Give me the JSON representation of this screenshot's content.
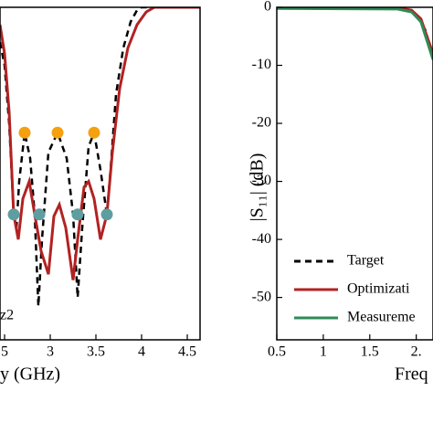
{
  "chart_data": [
    {
      "type": "line",
      "x_label": "y (GHz)",
      "annotation": "z2",
      "xlim": [
        2.45,
        4.64
      ],
      "ylim": [
        -57.3,
        0
      ],
      "xticks": [
        {
          "value": 2.5,
          "label": "5"
        },
        3.0,
        3.5,
        4.0,
        4.5
      ],
      "series": [
        {
          "color": "#000000",
          "dash": true,
          "x": [
            2.45,
            2.5,
            2.55,
            2.6,
            2.63,
            2.66,
            2.72,
            2.78,
            2.83,
            2.87,
            2.91,
            2.98,
            3.08,
            3.18,
            3.25,
            3.3,
            3.35,
            3.42,
            3.48,
            3.55,
            3.62,
            3.66,
            3.72,
            3.8,
            3.88,
            3.95,
            4.0,
            4.64
          ],
          "values": [
            -6,
            -10,
            -20,
            -35.7,
            -38,
            -30,
            -21.6,
            -26,
            -35.7,
            -51.5,
            -40,
            -25,
            -21.6,
            -26,
            -35.7,
            -50,
            -38,
            -24,
            -21.6,
            -28,
            -35.7,
            -28,
            -15,
            -7,
            -2.5,
            -0.5,
            0,
            0
          ]
        },
        {
          "color": "#b22222",
          "dash": false,
          "x": [
            2.45,
            2.5,
            2.55,
            2.6,
            2.65,
            2.7,
            2.77,
            2.83,
            2.9,
            2.98,
            3.04,
            3.1,
            3.17,
            3.25,
            3.3,
            3.37,
            3.42,
            3.48,
            3.55,
            3.62,
            3.68,
            3.76,
            3.85,
            3.95,
            4.05,
            4.14,
            4.64
          ],
          "values": [
            -3,
            -8,
            -18,
            -35.7,
            -40,
            -33,
            -30,
            -35.7,
            -42,
            -46,
            -36,
            -34,
            -38,
            -47,
            -40,
            -31,
            -30,
            -33,
            -40,
            -35.7,
            -25,
            -14,
            -7,
            -3,
            -0.8,
            0,
            0
          ]
        }
      ],
      "points": [
        {
          "color": "#f5a00f",
          "x": [
            2.72,
            3.08,
            3.48
          ],
          "values": [
            -21.6,
            -21.6,
            -21.6
          ]
        },
        {
          "color": "#5f9ea0",
          "x": [
            2.6,
            2.88,
            3.3,
            3.62
          ],
          "values": [
            -35.7,
            -35.7,
            -35.7,
            -35.7
          ]
        }
      ]
    },
    {
      "type": "line",
      "x_label": "Freq",
      "y_label": "|S₁₁| (dB)",
      "xlim": [
        0.5,
        2.18
      ],
      "ylim": [
        -57.3,
        0
      ],
      "xticks": [
        0.5,
        1.0,
        1.5,
        {
          "value": 2.0,
          "label": "2."
        }
      ],
      "yticks": [
        0,
        -10,
        -20,
        -30,
        -40,
        -50
      ],
      "series": [
        {
          "name": "Target",
          "color": "#000000",
          "dash": true,
          "x": [
            0.5,
            1.8,
            1.9,
            2.0,
            2.1,
            2.18
          ],
          "values": [
            0,
            0,
            -0.3,
            -1.2,
            -4,
            -9
          ]
        },
        {
          "name": "Optimizati",
          "color": "#b22222",
          "dash": false,
          "x": [
            0.5,
            1.8,
            1.95,
            2.05,
            2.18
          ],
          "values": [
            0,
            -0.1,
            -0.5,
            -2,
            -8
          ]
        },
        {
          "name": "Measureme",
          "color": "#2e8b57",
          "dash": false,
          "x": [
            0.5,
            1.8,
            1.95,
            2.05,
            2.18
          ],
          "values": [
            -0.2,
            -0.3,
            -0.8,
            -2.5,
            -9
          ]
        }
      ]
    }
  ]
}
